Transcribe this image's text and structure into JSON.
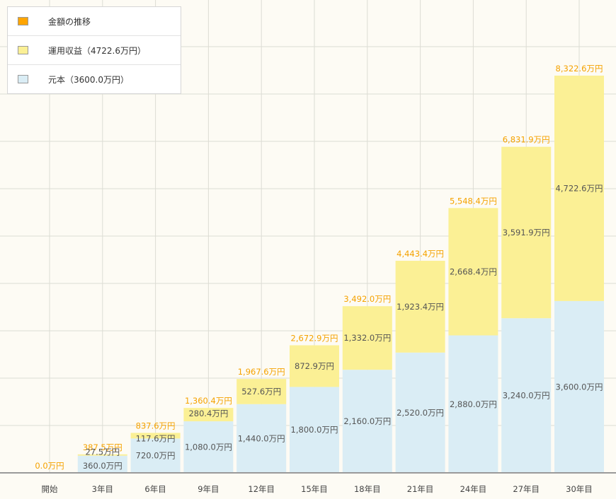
{
  "colors": {
    "total": "#f5a200",
    "profit": "#fbf095",
    "principal": "#daedf5",
    "grid": "#dcdcd4",
    "axis": "#9a9a9a",
    "label": "#555555",
    "total_label": "#f5a200"
  },
  "legend": [
    {
      "label": "金額の推移",
      "color": "#ffa500"
    },
    {
      "label": "運用収益（4722.6万円）",
      "color": "#fbf095"
    },
    {
      "label": "元本（3600.0万円）",
      "color": "#daedf5"
    }
  ],
  "chart_data": {
    "type": "bar",
    "stacked": true,
    "categories": [
      "開始",
      "3年目",
      "6年目",
      "9年目",
      "12年目",
      "15年目",
      "18年目",
      "21年目",
      "24年目",
      "27年目",
      "30年目"
    ],
    "series": [
      {
        "name": "元本（3600.0万円）",
        "values": [
          0,
          360.0,
          720.0,
          1080.0,
          1440.0,
          1800.0,
          2160.0,
          2520.0,
          2880.0,
          3240.0,
          3600.0
        ],
        "labels": [
          "",
          "360.0万円",
          "720.0万円",
          "1,080.0万円",
          "1,440.0万円",
          "1,800.0万円",
          "2,160.0万円",
          "2,520.0万円",
          "2,880.0万円",
          "3,240.0万円",
          "3,600.0万円"
        ]
      },
      {
        "name": "運用収益（4722.6万円）",
        "values": [
          0,
          27.5,
          117.6,
          280.4,
          527.6,
          872.9,
          1332.0,
          1923.4,
          2668.4,
          3591.9,
          4722.6
        ],
        "labels": [
          "",
          "27.5万円",
          "117.6万円",
          "280.4万円",
          "527.6万円",
          "872.9万円",
          "1,332.0万円",
          "1,923.4万円",
          "2,668.4万円",
          "3,591.9万円",
          "4,722.6万円"
        ]
      }
    ],
    "totals": [
      0.0,
      387.5,
      837.6,
      1360.4,
      1967.6,
      2672.9,
      3492.0,
      4443.4,
      5548.4,
      6831.9,
      8322.6
    ],
    "total_labels": [
      "0.0万円",
      "387.5万円",
      "837.6万円",
      "1,360.4万円",
      "1,967.6万円",
      "2,672.9万円",
      "3,492.0万円",
      "4,443.4万円",
      "5,548.4万円",
      "6,831.9万円",
      "8,322.6万円"
    ],
    "ylim": [
      0,
      9000
    ],
    "grid": true,
    "legend_position": "top-left"
  }
}
